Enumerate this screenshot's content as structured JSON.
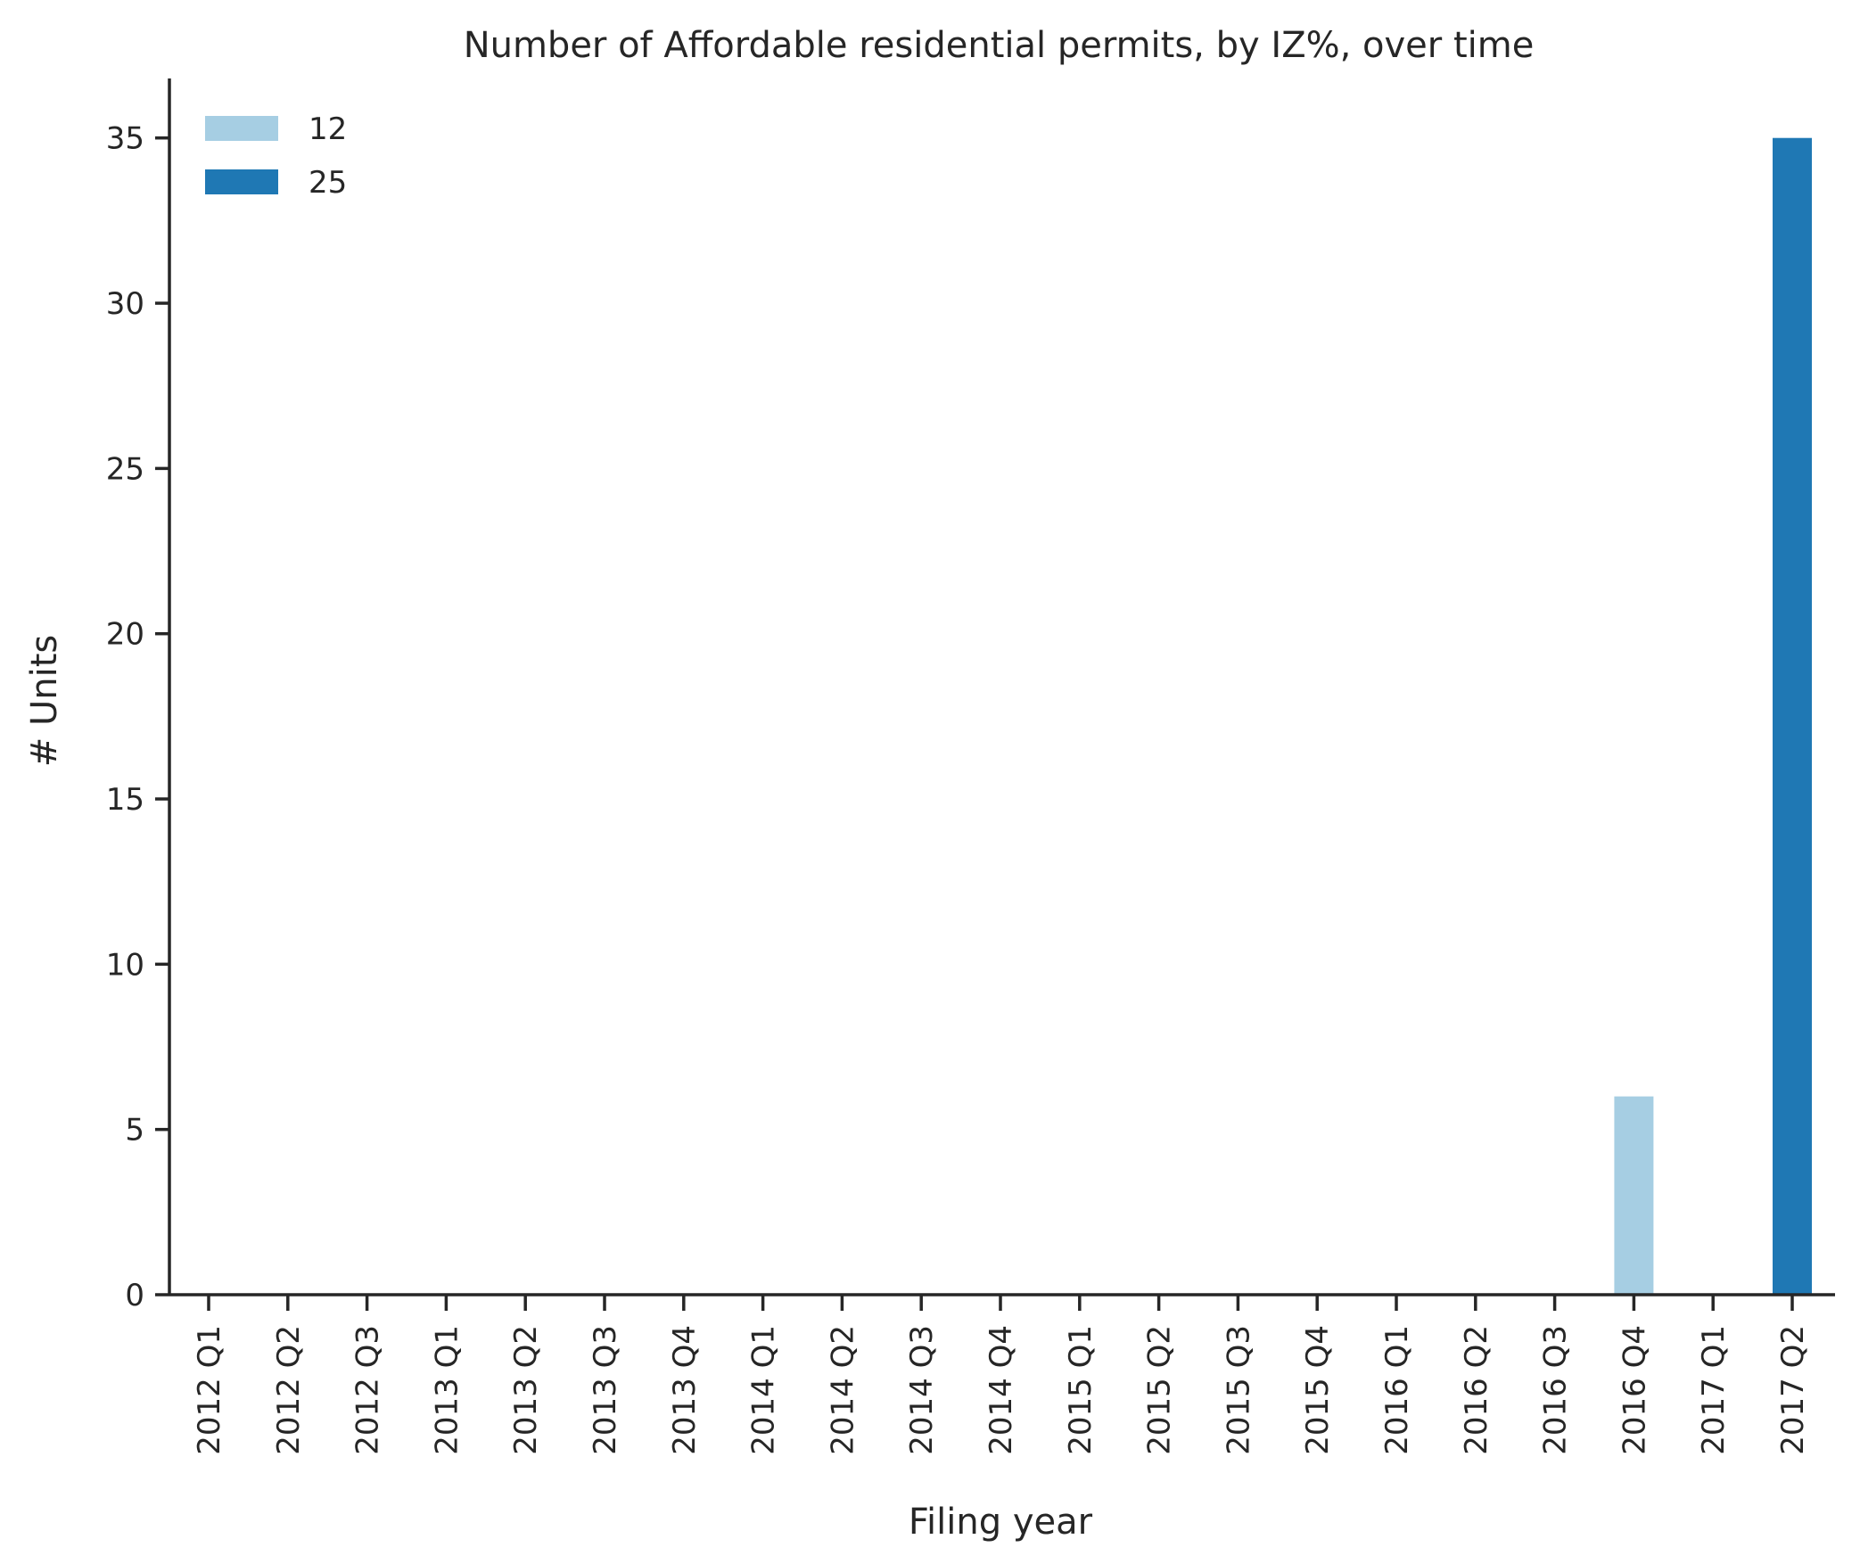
{
  "chart_data": {
    "type": "bar",
    "title": "Number of Affordable residential permits, by IZ%, over time",
    "xlabel": "Filing year",
    "ylabel": "# Units",
    "ylim": [
      0,
      36.8
    ],
    "yticks": [
      0,
      5,
      10,
      15,
      20,
      25,
      30,
      35
    ],
    "categories": [
      "2012 Q1",
      "2012 Q2",
      "2012 Q3",
      "2013 Q1",
      "2013 Q2",
      "2013 Q3",
      "2013 Q4",
      "2014 Q1",
      "2014 Q2",
      "2014 Q3",
      "2014 Q4",
      "2015 Q1",
      "2015 Q2",
      "2015 Q3",
      "2015 Q4",
      "2016 Q1",
      "2016 Q2",
      "2016 Q3",
      "2016 Q4",
      "2017 Q1",
      "2017 Q2"
    ],
    "series": [
      {
        "name": "12",
        "color": "#a6cee3",
        "values": [
          0,
          0,
          0,
          0,
          0,
          0,
          0,
          0,
          0,
          0,
          0,
          0,
          0,
          0,
          0,
          0,
          0,
          0,
          6,
          0,
          0
        ]
      },
      {
        "name": "25",
        "color": "#1f78b4",
        "values": [
          0,
          0,
          0,
          0,
          0,
          0,
          0,
          0,
          0,
          0,
          0,
          0,
          0,
          0,
          0,
          0,
          0,
          0,
          0,
          0,
          35
        ]
      }
    ],
    "legend_position": "top-left",
    "grid": false
  }
}
